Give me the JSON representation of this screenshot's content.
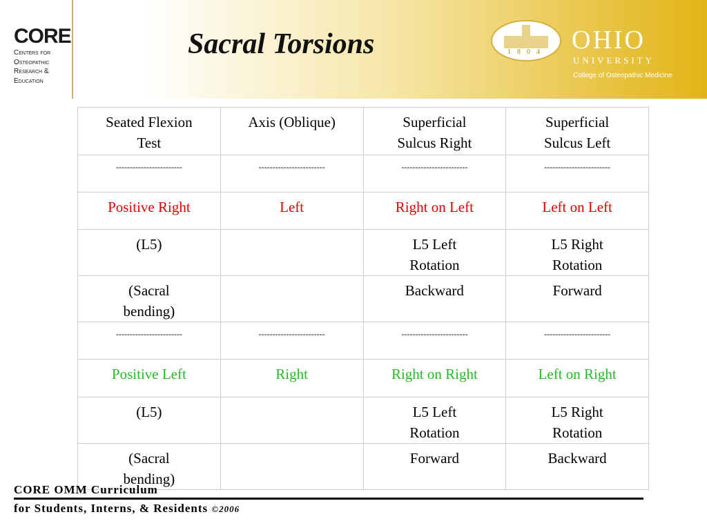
{
  "header": {
    "logo": {
      "name": "CORE",
      "lines": [
        "Centers for",
        "Osteopathic",
        "Research &",
        "Education"
      ]
    },
    "title": "Sacral Torsions",
    "ohio": {
      "year": "1804",
      "name": "OHIO",
      "sub": "UNIVERSITY",
      "college": "College of Osteopathic Medicine"
    }
  },
  "table": {
    "header": [
      "Seated Flexion\nTest",
      "Axis (Oblique)",
      "Superficial\nSulcus Right",
      "Superficial\nSulcus Left"
    ],
    "rows": [
      [
        "------------------------",
        "------------------------",
        "------------------------",
        "------------------------"
      ],
      [
        "Positive Right",
        "Left",
        "Right on Left",
        "Left on Left"
      ],
      [
        "(L5)",
        "",
        "L5 Left\nRotation",
        "L5 Right\nRotation"
      ],
      [
        "(Sacral\nbending)",
        "",
        "Backward",
        "Forward"
      ],
      [
        "------------------------",
        "------------------------",
        "------------------------",
        "------------------------"
      ],
      [
        "Positive Left",
        "Right",
        "Right on Right",
        "Left on Right"
      ],
      [
        "(L5)",
        "",
        "L5 Left\nRotation",
        "L5 Right\nRotation"
      ],
      [
        "(Sacral\nbending)",
        "",
        "Forward",
        "Backward"
      ]
    ]
  },
  "footer": {
    "line1": "CORE OMM Curriculum",
    "line2": "for Students, Interns, & Residents",
    "copyright": "©2006"
  }
}
